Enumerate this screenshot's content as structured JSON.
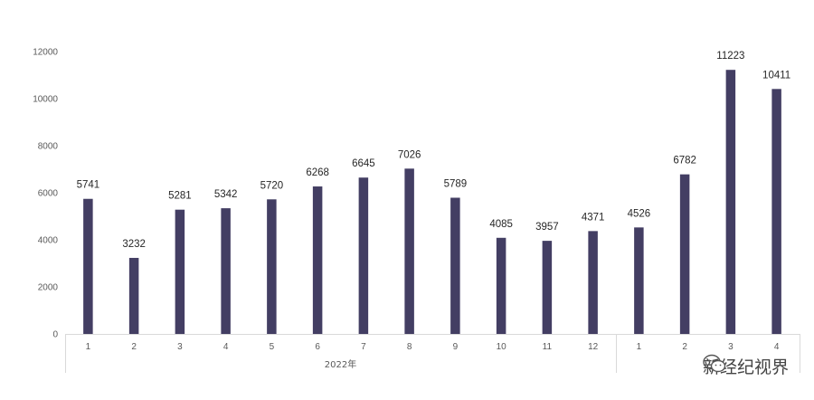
{
  "chart_data": {
    "type": "bar",
    "categories": [
      "1",
      "2",
      "3",
      "4",
      "5",
      "6",
      "7",
      "8",
      "9",
      "10",
      "11",
      "12",
      "1",
      "2",
      "3",
      "4"
    ],
    "values": [
      5741,
      3232,
      5281,
      5342,
      5720,
      6268,
      6645,
      7026,
      5789,
      4085,
      3957,
      4371,
      4526,
      6782,
      11223,
      10411
    ],
    "groups": [
      {
        "label": "2022年",
        "count": 12
      },
      {
        "label": "",
        "count": 4
      }
    ],
    "ylim": [
      0,
      12000
    ],
    "yticks": [
      "0",
      "2000",
      "4000",
      "6000",
      "8000",
      "10000",
      "12000"
    ],
    "title": "",
    "xlabel": "",
    "ylabel": "",
    "bar_color": "#433e63",
    "grid": false,
    "legend": "none"
  },
  "watermark": {
    "text": "新经纪视界",
    "icon": "wechat-icon"
  }
}
